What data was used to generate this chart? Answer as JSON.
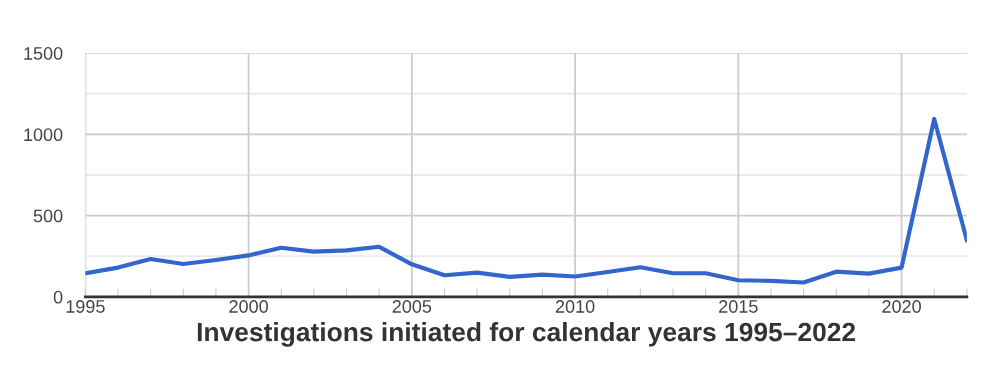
{
  "chart_data": {
    "type": "line",
    "xlabel": "Investigations initiated for calendar years 1995–2022",
    "x": [
      1995,
      1996,
      1997,
      1998,
      1999,
      2000,
      2001,
      2002,
      2003,
      2004,
      2005,
      2006,
      2007,
      2008,
      2009,
      2010,
      2011,
      2012,
      2013,
      2014,
      2015,
      2016,
      2017,
      2018,
      2019,
      2020,
      2021,
      2022
    ],
    "series": [
      {
        "color": "#3366cc",
        "values": [
          145,
          180,
          233,
          202,
          227,
          255,
          302,
          278,
          286,
          308,
          200,
          133,
          149,
          123,
          137,
          125,
          153,
          182,
          145,
          145,
          102,
          98,
          88,
          155,
          143,
          180,
          1095,
          349
        ]
      }
    ],
    "xlim": [
      1995,
      2022
    ],
    "xticks": [
      1995,
      {
        "value": 1996,
        "label": null
      },
      {
        "value": 1997,
        "label": null
      },
      {
        "value": 1998,
        "label": null
      },
      {
        "value": 1999,
        "label": null
      },
      2000,
      {
        "value": 2001,
        "label": null
      },
      {
        "value": 2002,
        "label": null
      },
      {
        "value": 2003,
        "label": null
      },
      {
        "value": 2004,
        "label": null
      },
      2005,
      {
        "value": 2006,
        "label": null
      },
      {
        "value": 2007,
        "label": null
      },
      {
        "value": 2008,
        "label": null
      },
      {
        "value": 2009,
        "label": null
      },
      2010,
      {
        "value": 2011,
        "label": null
      },
      {
        "value": 2012,
        "label": null
      },
      {
        "value": 2013,
        "label": null
      },
      {
        "value": 2014,
        "label": null
      },
      2015,
      {
        "value": 2016,
        "label": null
      },
      {
        "value": 2017,
        "label": null
      },
      {
        "value": 2018,
        "label": null
      },
      {
        "value": 2019,
        "label": null
      },
      2020,
      {
        "value": 2021,
        "label": null
      },
      {
        "value": 2022,
        "label": null
      }
    ],
    "ylim": [
      0,
      1500
    ],
    "yticks": [
      0,
      {
        "value": 250,
        "label": null
      },
      500,
      {
        "value": 750,
        "label": null
      },
      1000,
      {
        "value": 1250,
        "label": null
      },
      1500
    ],
    "grid": true,
    "legend": false,
    "marker": "none",
    "line_style": "solid"
  }
}
